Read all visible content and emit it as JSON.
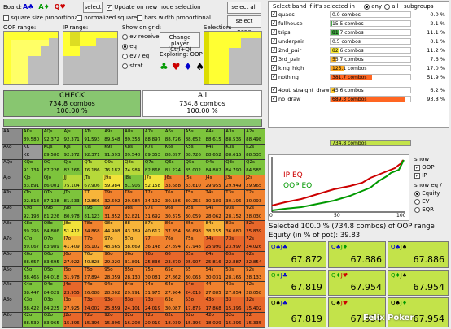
{
  "toolbar": {
    "board_label": "Board:",
    "board_cards": [
      {
        "text": "A♣",
        "color": "#0000cc"
      },
      {
        "text": "A♦",
        "color": "#009900"
      },
      {
        "text": "Q♥",
        "color": "#cc0000"
      }
    ],
    "select_button": "select",
    "update_checkbox": "Update on new node selection",
    "square_size_checkbox": "square size proportional",
    "normalized_checkbox": "normalized squares",
    "bars_checkbox": "bars width proportional",
    "select_all_button": "select all",
    "select_none_button": "select none"
  },
  "ranges": {
    "oop_label": "OOP range:",
    "ip_label": "IP range:",
    "show_on_grid_label": "Show on grid:",
    "radio_ev_received": "ev received",
    "radio_eq": "eq",
    "radio_ev_eq": "ev / eq",
    "radio_strat": "strat",
    "change_player_button": "Change player (Ctrl+Q)",
    "exploring_label": "Exploring: OOP",
    "selection_label": "Selection:"
  },
  "action_panel": {
    "check_title": "CHECK",
    "check_combos": "734.8 combos",
    "check_pct": "100.00 %",
    "all_title": "All",
    "all_combos": "734.8 combos",
    "all_pct": "100.00 %"
  },
  "matrix": {
    "hands": [
      [
        "AA",
        "AKs",
        "AQs",
        "AJs",
        "ATs",
        "A9s",
        "A8s",
        "A7s",
        "A6s",
        "A5s",
        "A4s",
        "A3s",
        "A2s"
      ],
      [
        "AKo",
        "KK",
        "KQs",
        "KJs",
        "KTs",
        "K9s",
        "K8s",
        "K7s",
        "K6s",
        "K5s",
        "K4s",
        "K3s",
        "K2s"
      ],
      [
        "AQo",
        "KQo",
        "QQ",
        "QJs",
        "QTs",
        "Q9s",
        "Q8s",
        "Q7s",
        "Q6s",
        "Q5s",
        "Q4s",
        "Q3s",
        "Q2s"
      ],
      [
        "AJo",
        "KJo",
        "QJo",
        "JJ",
        "JTs",
        "J9s",
        "J8s",
        "J7s",
        "J6s",
        "J5s",
        "J4s",
        "J3s",
        "J2s"
      ],
      [
        "ATo",
        "KTo",
        "QTo",
        "JTo",
        "TT",
        "T9s",
        "T8s",
        "T7s",
        "T6s",
        "T5s",
        "T4s",
        "T3s",
        "T2s"
      ],
      [
        "A9o",
        "K9o",
        "Q9o",
        "J9o",
        "T9o",
        "99",
        "98s",
        "97s",
        "96s",
        "95s",
        "94s",
        "93s",
        "92s"
      ],
      [
        "A8o",
        "K8o",
        "Q8o",
        "J8o",
        "T8o",
        "98o",
        "88",
        "87s",
        "86s",
        "85s",
        "84s",
        "83s",
        "82s"
      ],
      [
        "A7o",
        "K7o",
        "Q7o",
        "J7o",
        "T7o",
        "97o",
        "87o",
        "77",
        "76s",
        "75s",
        "74s",
        "73s",
        "72s"
      ],
      [
        "A6o",
        "K6o",
        "Q6o",
        "J6o",
        "T6o",
        "96o",
        "86o",
        "76o",
        "66",
        "65s",
        "64s",
        "63s",
        "62s"
      ],
      [
        "A5o",
        "K5o",
        "Q5o",
        "J5o",
        "T5o",
        "95o",
        "85o",
        "75o",
        "65o",
        "55",
        "54s",
        "53s",
        "52s"
      ],
      [
        "A4o",
        "K4o",
        "Q4o",
        "J4o",
        "T4o",
        "94o",
        "84o",
        "74o",
        "64o",
        "54o",
        "44",
        "43s",
        "42s"
      ],
      [
        "A3o",
        "K3o",
        "Q3o",
        "J3o",
        "T3o",
        "93o",
        "83o",
        "73o",
        "63o",
        "53o",
        "43o",
        "33",
        "32s"
      ],
      [
        "A2o",
        "K2o",
        "Q2o",
        "J2o",
        "T2o",
        "92o",
        "82o",
        "72o",
        "62o",
        "52o",
        "42o",
        "32o",
        "22"
      ]
    ],
    "values": [
      [
        "",
        "89.580",
        "92.372",
        "92.371",
        "91.593",
        "89.548",
        "89.353",
        "88.897",
        "88.726",
        "88.652",
        "88.615",
        "88.535",
        "88.498"
      ],
      [
        "",
        "",
        "",
        "",
        "",
        "",
        "",
        "",
        "",
        "",
        "",
        "",
        ""
      ],
      [
        "",
        "",
        "",
        "",
        "",
        "",
        "",
        "",
        "",
        "",
        "",
        "",
        ""
      ],
      [
        "",
        "",
        "",
        "",
        "",
        "",
        "",
        "",
        "",
        "",
        "",
        "",
        ""
      ],
      [
        "",
        "",
        "",
        "",
        "",
        "",
        "",
        "",
        "",
        "",
        "",
        "",
        ""
      ],
      [
        "",
        "",
        "",
        "",
        "",
        "",
        "",
        "",
        "",
        "",
        "",
        "",
        ""
      ],
      [
        "",
        "",
        "",
        "",
        "",
        "",
        "",
        "",
        "",
        "",
        "",
        "",
        ""
      ],
      [
        "",
        "",
        "",
        "",
        "",
        "",
        "",
        "",
        "",
        "",
        "",
        "",
        ""
      ],
      [
        "",
        "",
        "",
        "",
        "",
        "",
        "",
        "",
        "",
        "",
        "",
        "",
        ""
      ],
      [
        "",
        "",
        "",
        "",
        "",
        "",
        "",
        "",
        "",
        "",
        "",
        "",
        ""
      ],
      [
        "",
        "",
        "",
        "",
        "",
        "",
        "",
        "",
        "",
        "",
        "",
        "",
        ""
      ],
      [
        "",
        "",
        "",
        "",
        "",
        "",
        "",
        "",
        "",
        "",
        "",
        "",
        ""
      ],
      [
        "",
        "",
        "",
        "",
        "",
        "",
        "",
        "",
        "",
        "",
        "",
        "",
        ""
      ]
    ],
    "visible_values": {
      "1": [
        "",
        "KK",
        "89.580",
        "92.372",
        "92.371",
        "91.593",
        "89.548",
        "89.353",
        "88.897",
        "88.726",
        "88.652",
        "88.615",
        "88.535"
      ],
      "2": [
        "",
        "91.134",
        "87.226",
        "82.266",
        "76.186",
        "76.182",
        "74.984",
        "82.868",
        "81.224",
        "85.002",
        "84.802",
        "84.790",
        "84.585"
      ],
      "3": [
        "",
        "83.891",
        "86.001",
        "75.104",
        "67.906",
        "59.984",
        "81.906",
        "52.158",
        "33.688",
        "33.610",
        "29.955",
        "29.949",
        "29.965"
      ],
      "4": [
        "",
        "92.818",
        "87.138",
        "81.533",
        "42.866",
        "32.592",
        "29.984",
        "34.192",
        "30.186",
        "30.255",
        "30.189",
        "30.196",
        "30.093"
      ],
      "5": [
        "",
        "92.198",
        "81.226",
        "80.978",
        "81.123",
        "31.852",
        "32.821",
        "31.692",
        "30.375",
        "30.059",
        "28.062",
        "28.152",
        "28.030"
      ],
      "6": [
        "",
        "89.295",
        "84.806",
        "51.412",
        "34.868",
        "44.908",
        "43.189",
        "40.612",
        "37.854",
        "36.698",
        "38.155",
        "36.080",
        "25.839"
      ],
      "7": [
        "",
        "89.067",
        "83.989",
        "41.409",
        "35.102",
        "48.665",
        "38.669",
        "36.148",
        "27.894",
        "27.948",
        "25.990",
        "23.997",
        "24.026"
      ],
      "8": [
        "",
        "88.657",
        "83.695",
        "27.922",
        "40.828",
        "29.920",
        "31.891",
        "25.836",
        "23.870",
        "25.907",
        "25.816",
        "22.887",
        "22.854"
      ],
      "9": [
        "",
        "88.465",
        "84.018",
        "31.978",
        "27.894",
        "28.059",
        "28.130",
        "30.081",
        "27.862",
        "30.063",
        "30.031",
        "28.165",
        "28.133"
      ],
      "10": [
        "",
        "88.447",
        "84.029",
        "23.955",
        "26.088",
        "28.002",
        "29.991",
        "31.975",
        "27.964",
        "24.015",
        "27.885",
        "27.854",
        "28.058"
      ],
      "11": [
        "",
        "88.422",
        "84.225",
        "27.925",
        "24.002",
        "25.859",
        "24.101",
        "24.019",
        "30.087",
        "17.875",
        "17.868",
        "15.396",
        "15.402"
      ],
      "12": [
        "",
        "88.539",
        "83.965",
        "15.396",
        "15.396",
        "15.396",
        "16.208",
        "20.010",
        "18.039",
        "15.396",
        "18.029",
        "15.396",
        "15.335"
      ]
    }
  },
  "bands": {
    "header_label": "Select band if it's selected in",
    "radio_any": "any",
    "radio_all": "all",
    "subgroups_label": "subgroups",
    "rows": [
      {
        "name": "quads",
        "combos": "0.0 combos",
        "pct": "0.0 %",
        "fill": 0.0,
        "color": "#cccccc",
        "checked": true
      },
      {
        "name": "fullhouse",
        "combos": "15.5 combos",
        "pct": "2.1 %",
        "fill": 0.021,
        "color": "#44aa44",
        "checked": true
      },
      {
        "name": "trips",
        "combos": "81.7 combos",
        "pct": "11.1 %",
        "fill": 0.111,
        "color": "#44aa44",
        "checked": true
      },
      {
        "name": "underpair",
        "combos": "0.5 combos",
        "pct": "0.1 %",
        "fill": 0.001,
        "color": "#cccccc",
        "checked": true
      },
      {
        "name": "2nd_pair",
        "combos": "82.6 combos",
        "pct": "11.2 %",
        "fill": 0.112,
        "color": "#ffee33",
        "checked": true
      },
      {
        "name": "3rd_pair",
        "combos": "55.7 combos",
        "pct": "7.6 %",
        "fill": 0.076,
        "color": "#ffbb33",
        "checked": true
      },
      {
        "name": "king_high",
        "combos": "125.1 combos",
        "pct": "17.0 %",
        "fill": 0.17,
        "color": "#ffaa22",
        "checked": true
      },
      {
        "name": "nothing",
        "combos": "381.7 combos",
        "pct": "51.9 %",
        "fill": 0.519,
        "color": "#ff6622",
        "checked": true
      },
      {
        "name": "4out_straight_draw",
        "combos": "45.6 combos",
        "pct": "6.2 %",
        "fill": 0.062,
        "color": "#ffcc33",
        "checked": true
      },
      {
        "name": "no_draw",
        "combos": "689.3 combos",
        "pct": "93.8 %",
        "fill": 0.938,
        "color": "#ff6622",
        "checked": true
      }
    ],
    "total": {
      "combos": "734.8 combos",
      "fill": 1.0
    }
  },
  "equity_chart": {
    "ip_label": "IP EQ",
    "oop_label": "OOP EQ",
    "x_ticks": [
      "0",
      "50",
      "100"
    ],
    "ip_color": "#cc0000",
    "oop_color": "#009900"
  },
  "show_panel": {
    "show_label": "show",
    "oop": "OOP",
    "ip": "IP",
    "show_eq_label": "show eq /",
    "equity": "Equity",
    "ev": "EV",
    "eqr": "EQR"
  },
  "selected_info": {
    "line1": "Selected 100.0 % (734.8 combos) of OOP range",
    "line2": "Equity (in % of pot): 39.83"
  },
  "equity_cells": [
    {
      "cards": [
        {
          "t": "Q♣",
          "c": "#0000cc"
        },
        {
          "t": "J♣",
          "c": "#0000cc"
        }
      ],
      "value": "67.872"
    },
    {
      "cards": [
        {
          "t": "Q♣",
          "c": "#0000cc"
        },
        {
          "t": "J♦",
          "c": "#009900"
        }
      ],
      "value": "67.886"
    },
    {
      "cards": [
        {
          "t": "Q♣",
          "c": "#0000cc"
        },
        {
          "t": "J♠",
          "c": "#000000"
        }
      ],
      "value": "67.886"
    },
    {
      "cards": [
        {
          "t": "Q♦",
          "c": "#009900"
        },
        {
          "t": "J♣",
          "c": "#0000cc"
        }
      ],
      "value": "67.819"
    },
    {
      "cards": [
        {
          "t": "Q♦",
          "c": "#009900"
        },
        {
          "t": "J♥",
          "c": "#cc0000"
        }
      ],
      "value": "67.954"
    },
    {
      "cards": [
        {
          "t": "Q♦",
          "c": "#009900"
        },
        {
          "t": "J♠",
          "c": "#000000"
        }
      ],
      "value": "67.954"
    },
    {
      "cards": [
        {
          "t": "Q♠",
          "c": "#000000"
        },
        {
          "t": "J♣",
          "c": "#0000cc"
        }
      ],
      "value": "67.819"
    },
    {
      "cards": [
        {
          "t": "Q♠",
          "c": "#000000"
        },
        {
          "t": "J♥",
          "c": "#cc0000"
        }
      ],
      "value": "67.954"
    },
    {
      "cards": [
        {
          "t": "Q♠",
          "c": "#000000"
        },
        {
          "t": "J♦",
          "c": "#009900"
        }
      ],
      "value": "67.954"
    }
  ],
  "watermark": "Felix Poker"
}
